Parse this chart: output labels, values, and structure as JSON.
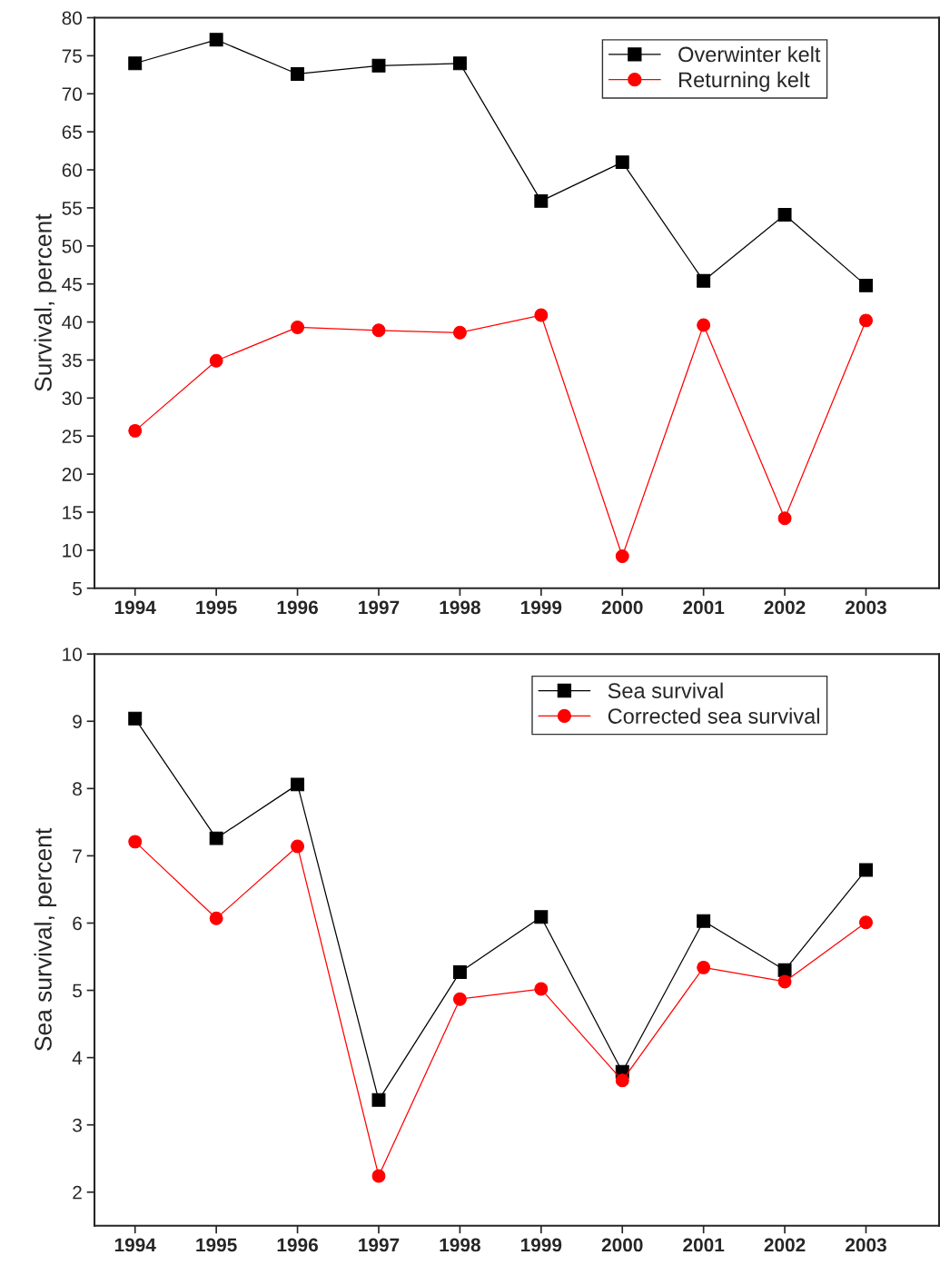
{
  "chart_data": [
    {
      "type": "line",
      "ylabel": "Survival, percent",
      "x": [
        1994,
        1995,
        1996,
        1997,
        1998,
        1999,
        2000,
        2001,
        2002,
        2003
      ],
      "xlim": [
        1993.5,
        2003.9
      ],
      "xticks": [
        1994,
        1995,
        1996,
        1997,
        1998,
        1999,
        2000,
        2001,
        2002,
        2003
      ],
      "ylim": [
        5,
        80
      ],
      "yticks": [
        5,
        10,
        15,
        20,
        25,
        30,
        35,
        40,
        45,
        50,
        55,
        60,
        65,
        70,
        75,
        80
      ],
      "grid": false,
      "legend": "top right",
      "series": [
        {
          "name": "Overwinter kelt",
          "color": "#000000",
          "marker": "square",
          "values": [
            74.0,
            77.1,
            72.6,
            73.7,
            74.0,
            55.9,
            61.0,
            45.4,
            54.1,
            44.8
          ]
        },
        {
          "name": "Returning kelt",
          "color": "#ff0000",
          "marker": "circle",
          "values": [
            25.7,
            34.9,
            39.3,
            38.9,
            38.6,
            40.9,
            9.2,
            39.6,
            14.2,
            40.2
          ]
        }
      ]
    },
    {
      "type": "line",
      "ylabel": "Sea survival, percent",
      "x": [
        1994,
        1995,
        1996,
        1997,
        1998,
        1999,
        2000,
        2001,
        2002,
        2003
      ],
      "xlim": [
        1993.5,
        2003.9
      ],
      "xticks": [
        1994,
        1995,
        1996,
        1997,
        1998,
        1999,
        2000,
        2001,
        2002,
        2003
      ],
      "ylim": [
        1.5,
        10
      ],
      "yticks": [
        2,
        3,
        4,
        5,
        6,
        7,
        8,
        9,
        10
      ],
      "grid": false,
      "legend": "top right",
      "series": [
        {
          "name": "Sea survival",
          "color": "#000000",
          "marker": "square",
          "values": [
            9.04,
            7.26,
            8.06,
            3.37,
            5.27,
            6.09,
            3.79,
            6.03,
            5.3,
            6.79
          ]
        },
        {
          "name": "Corrected sea survival",
          "color": "#ff0000",
          "marker": "circle",
          "values": [
            7.21,
            6.07,
            7.14,
            2.24,
            4.87,
            5.02,
            3.66,
            5.34,
            5.13,
            6.01
          ]
        }
      ]
    }
  ]
}
